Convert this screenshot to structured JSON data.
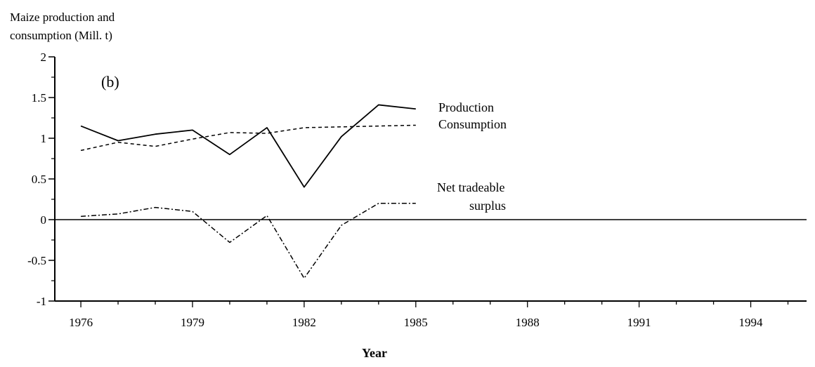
{
  "chart_data": {
    "type": "line",
    "panel_label": "(b)",
    "ylabel_lines": [
      "Maize production and",
      "consumption (Mill. t)"
    ],
    "xlabel": "Year",
    "ylim": [
      -1,
      2
    ],
    "xlim": [
      1975.3,
      1995.5
    ],
    "yticks": [
      -1,
      -0.5,
      0,
      0.5,
      1,
      1.5,
      2
    ],
    "ytick_labels": [
      "-1",
      "-0.5",
      "0",
      "0.5",
      "1",
      "1.5",
      "2"
    ],
    "xticks": [
      1976,
      1979,
      1982,
      1985,
      1988,
      1991,
      1994
    ],
    "xtick_labels": [
      "1976",
      "1979",
      "1982",
      "1985",
      "1988",
      "1991",
      "1994"
    ],
    "zero_line": true,
    "series": [
      {
        "name": "Production",
        "style": "solid",
        "label": "Production",
        "x": [
          1976,
          1977,
          1978,
          1979,
          1980,
          1981,
          1982,
          1983,
          1984,
          1985
        ],
        "values": [
          1.15,
          0.97,
          1.05,
          1.1,
          0.8,
          1.13,
          0.4,
          1.02,
          1.41,
          1.36
        ]
      },
      {
        "name": "Consumption",
        "style": "dashed",
        "label": "Consumption",
        "x": [
          1976,
          1977,
          1978,
          1979,
          1980,
          1981,
          1982,
          1983,
          1984,
          1985
        ],
        "values": [
          0.85,
          0.95,
          0.9,
          0.99,
          1.07,
          1.06,
          1.13,
          1.14,
          1.15,
          1.16
        ]
      },
      {
        "name": "Net tradeable surplus",
        "style": "dashdot",
        "label_lines": [
          "Net tradeable",
          "surplus"
        ],
        "x": [
          1976,
          1977,
          1978,
          1979,
          1980,
          1981,
          1982,
          1983,
          1984,
          1985
        ],
        "values": [
          0.04,
          0.07,
          0.15,
          0.1,
          -0.28,
          0.05,
          -0.72,
          -0.07,
          0.2,
          0.2
        ]
      }
    ]
  }
}
